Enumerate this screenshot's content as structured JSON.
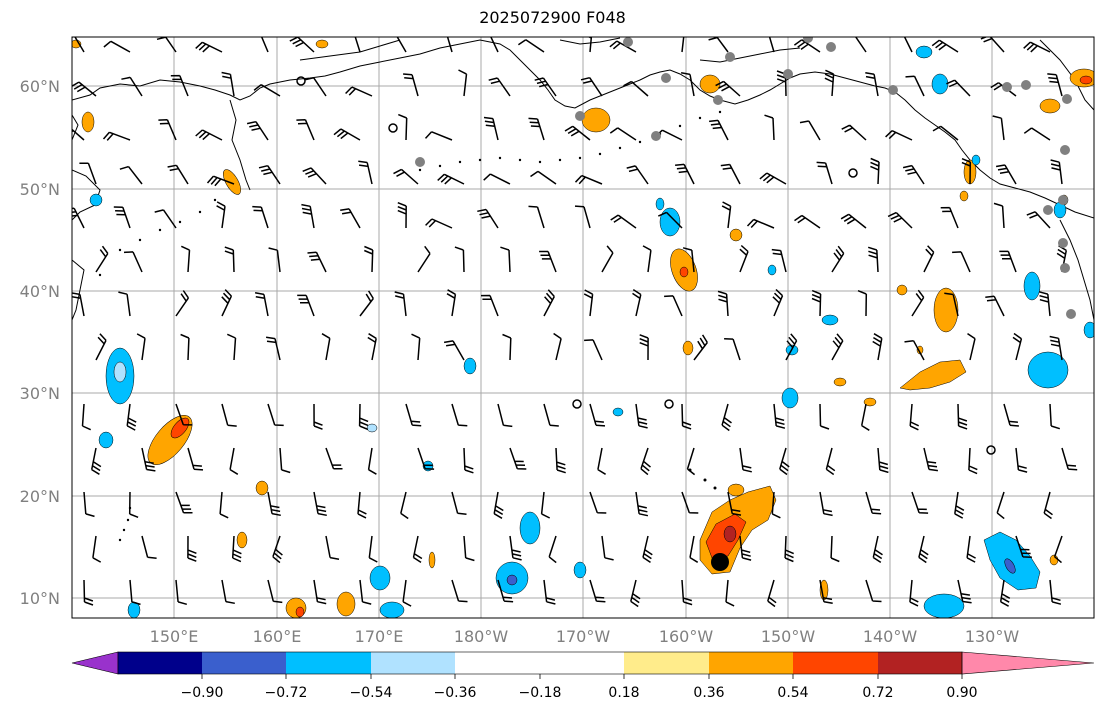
{
  "title": "2025072900 F048",
  "map": {
    "lat_labels": [
      "60°N",
      "50°N",
      "40°N",
      "30°N",
      "20°N",
      "10°N"
    ],
    "lon_labels": [
      "150°E",
      "160°E",
      "170°E",
      "180°W",
      "170°W",
      "160°W",
      "150°W",
      "140°W",
      "130°W"
    ],
    "grid_color": "#a9a9a9",
    "coast_color": "#000000"
  },
  "colorbar": {
    "ticks": [
      "−0.90",
      "−0.72",
      "−0.54",
      "−0.36",
      "−0.18",
      "0.18",
      "0.36",
      "0.54",
      "0.72",
      "0.90"
    ],
    "colors": [
      "#9932cc",
      "#00008b",
      "#3a5fcd",
      "#00bfff",
      "#b0e2ff",
      "#ffffff",
      "#ffec8b",
      "#ffa500",
      "#ff4500",
      "#b22222",
      "#ff88aa"
    ]
  },
  "colors": {
    "stations_gray": "#808080",
    "station_black": "#000000"
  }
}
